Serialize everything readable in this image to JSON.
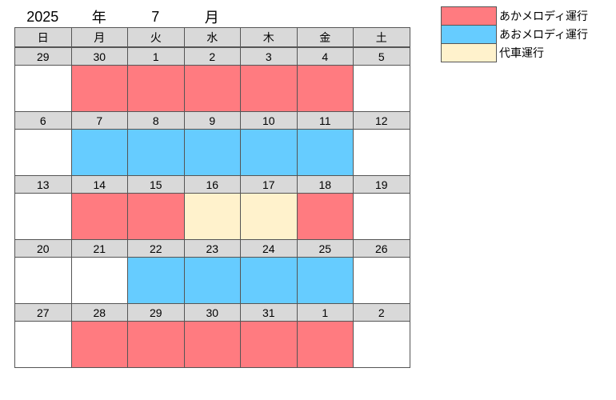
{
  "header": {
    "year": "2025",
    "year_unit": "年",
    "month": 7,
    "month_unit": "月"
  },
  "weekdays": [
    "日",
    "月",
    "火",
    "水",
    "木",
    "金",
    "土"
  ],
  "weeks": [
    {
      "days": [
        29,
        30,
        1,
        2,
        3,
        4,
        5
      ],
      "colors": [
        "#ffffff",
        "#ff7b80",
        "#ff7b80",
        "#ff7b80",
        "#ff7b80",
        "#ff7b80",
        "#ffffff"
      ]
    },
    {
      "days": [
        6,
        7,
        8,
        9,
        10,
        11,
        12
      ],
      "colors": [
        "#ffffff",
        "#66ccff",
        "#66ccff",
        "#66ccff",
        "#66ccff",
        "#66ccff",
        "#ffffff"
      ]
    },
    {
      "days": [
        13,
        14,
        15,
        16,
        17,
        18,
        19
      ],
      "colors": [
        "#ffffff",
        "#ff7b80",
        "#ff7b80",
        "#fff2cc",
        "#fff2cc",
        "#ff7b80",
        "#ffffff"
      ]
    },
    {
      "days": [
        20,
        21,
        22,
        23,
        24,
        25,
        26
      ],
      "colors": [
        "#ffffff",
        "#ffffff",
        "#66ccff",
        "#66ccff",
        "#66ccff",
        "#66ccff",
        "#ffffff"
      ]
    },
    {
      "days": [
        27,
        28,
        29,
        30,
        31,
        1,
        2
      ],
      "colors": [
        "#ffffff",
        "#ff7b80",
        "#ff7b80",
        "#ff7b80",
        "#ff7b80",
        "#ff7b80",
        "#ffffff"
      ]
    }
  ],
  "legend": [
    {
      "label": "あかメロディ運行",
      "color": "#ff7b80"
    },
    {
      "label": "あおメロディ運行",
      "color": "#66ccff"
    },
    {
      "label": "代車運行",
      "color": "#fff2cc"
    }
  ]
}
